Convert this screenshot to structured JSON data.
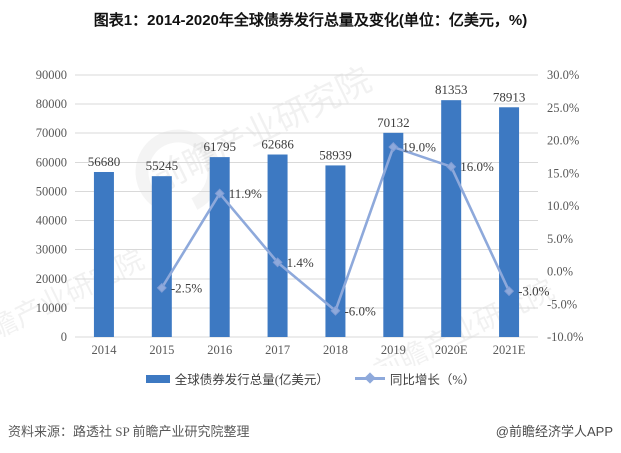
{
  "title": "图表1：2014-2020年全球债券发行总量及变化(单位：亿美元，%)",
  "chart_data": {
    "type": "combo-bar-line",
    "title": "图表1：2014-2020年全球债券发行总量及变化(单位：亿美元，%)",
    "categories": [
      "2014",
      "2015",
      "2016",
      "2017",
      "2018",
      "2019",
      "2020E",
      "2021E"
    ],
    "series": [
      {
        "name": "全球债券发行总量(亿美元）",
        "chart": "bar",
        "axis": "left",
        "color": "#3d79c2",
        "values": [
          56680,
          55245,
          61795,
          62686,
          58939,
          70132,
          81353,
          78913
        ],
        "labels": [
          "56680",
          "55245",
          "61795",
          "62686",
          "58939",
          "70132",
          "81353",
          "78913"
        ]
      },
      {
        "name": "同比增长（%）",
        "chart": "line",
        "axis": "right",
        "color": "#8ea9db",
        "marker_stroke": "#7f9cd4",
        "values": [
          null,
          -2.5,
          11.9,
          1.4,
          -6.0,
          19.0,
          16.0,
          -3.0
        ],
        "labels": [
          "",
          "-2.5%",
          "11.9%",
          "1.4%",
          "-6.0%",
          "19.0%",
          "16.0%",
          "-3.0%"
        ]
      }
    ],
    "left_axis": {
      "min": 0,
      "max": 90000,
      "step": 10000,
      "ticks": [
        "0",
        "10000",
        "20000",
        "30000",
        "40000",
        "50000",
        "60000",
        "70000",
        "80000",
        "90000"
      ]
    },
    "right_axis": {
      "min": -10,
      "max": 30,
      "step": 5,
      "ticks": [
        "-10.0%",
        "-5.0%",
        "0.0%",
        "5.0%",
        "10.0%",
        "15.0%",
        "20.0%",
        "25.0%",
        "30.0%"
      ]
    },
    "grid": true,
    "gridline_color": "#d9d9d9",
    "legend_position": "bottom"
  },
  "legend": {
    "bar_label": "全球债券发行总量(亿美元）",
    "line_label": "同比增长（%）"
  },
  "footer": {
    "source": "资料来源：路透社 SP 前瞻产业研究院整理",
    "brand": "@前瞻经济学人APP"
  },
  "watermark": {
    "text": "前瞻产业研究院"
  },
  "colors": {
    "bar": "#3d79c2",
    "line": "#8ea9db",
    "grid": "#d9d9d9",
    "axis_text": "#595959",
    "background": "#ffffff"
  }
}
